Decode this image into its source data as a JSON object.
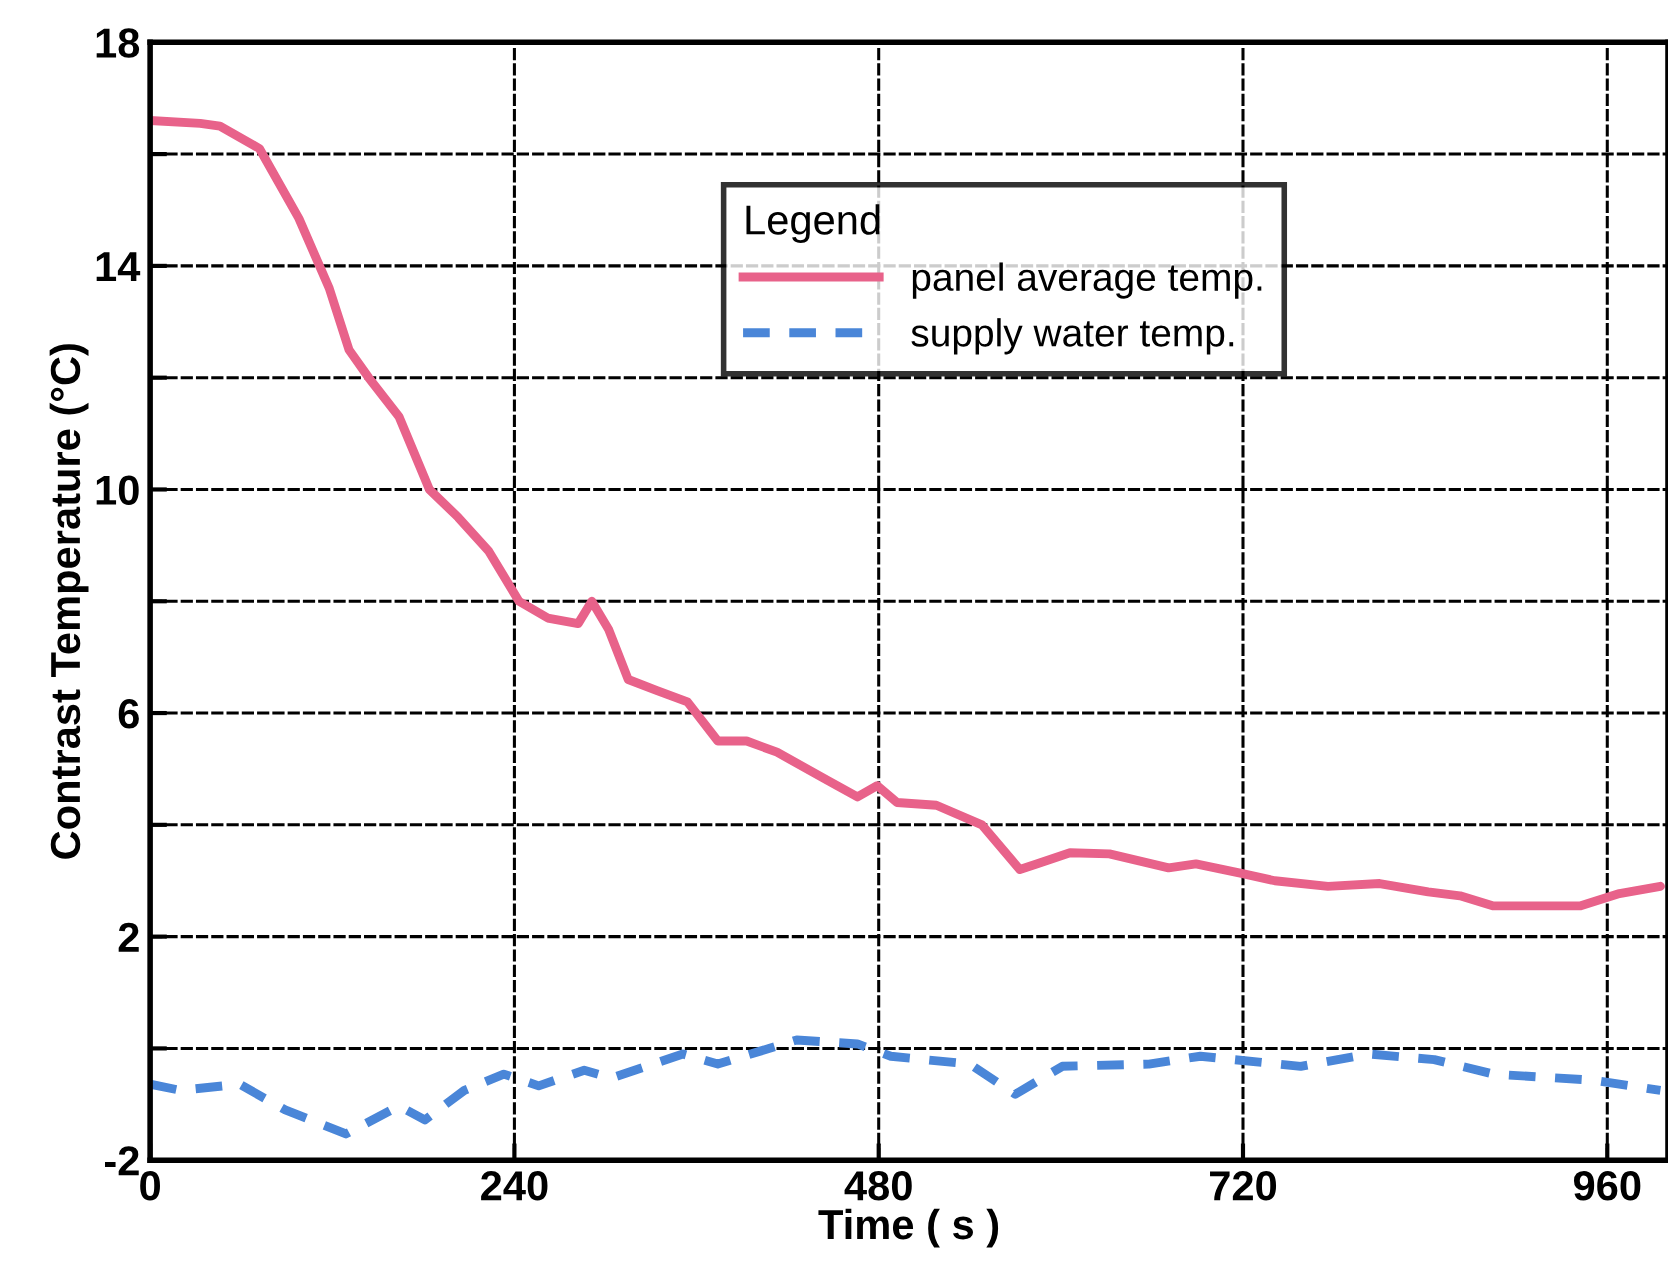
{
  "chart_data": {
    "type": "line",
    "xlabel": "Time ( s )",
    "ylabel": "Contrast Temperature (°C)",
    "legend_title": "Legend",
    "xlim": [
      0,
      1000
    ],
    "xticks": [
      0,
      240,
      480,
      720,
      960
    ],
    "ylim": [
      -2,
      18
    ],
    "yticks": [
      -2,
      {
        "value": 0,
        "label": null
      },
      2,
      {
        "value": 4,
        "label": null
      },
      6,
      {
        "value": 8,
        "label": null
      },
      10,
      {
        "value": 12,
        "label": null
      },
      14,
      {
        "value": 16,
        "label": null
      },
      18
    ],
    "grid": true,
    "legend": "top right",
    "series": [
      {
        "name": "panel average temp.",
        "color": "#e8628a",
        "line_style": "solid",
        "x": [
          0,
          33,
          46,
          72,
          98,
          118,
          131,
          144,
          164,
          184,
          203,
          223,
          243,
          262,
          282,
          291,
          302,
          315,
          334,
          354,
          374,
          393,
          413,
          446,
          466,
          479,
          492,
          518,
          548,
          573,
          584,
          606,
          632,
          671,
          689,
          719,
          741,
          776,
          810,
          842,
          863,
          885,
          942,
          968,
          995
        ],
        "values": [
          16.6,
          16.55,
          16.5,
          16.1,
          14.85,
          13.6,
          12.5,
          12,
          11.3,
          10,
          9.5,
          8.9,
          8.0,
          7.7,
          7.6,
          8.0,
          7.5,
          6.6,
          6.4,
          6.2,
          5.5,
          5.5,
          5.3,
          4.8,
          4.5,
          4.7,
          4.4,
          4.35,
          4.0,
          3.2,
          3.3,
          3.5,
          3.48,
          3.23,
          3.3,
          3.13,
          3.0,
          2.9,
          2.95,
          2.8,
          2.73,
          2.55,
          2.55,
          2.77,
          2.9
        ]
      },
      {
        "name": "supply water temp.",
        "color": "#4a86d8",
        "line_style": "dashed",
        "x": [
          0,
          20,
          59,
          89,
          129,
          164,
          181,
          207,
          233,
          256,
          286,
          304,
          351,
          374,
          426,
          466,
          488,
          540,
          570,
          601,
          658,
          692,
          758,
          803,
          846,
          885,
          951,
          995
        ],
        "values": [
          -0.64,
          -0.75,
          -0.64,
          -1.1,
          -1.53,
          -1.03,
          -1.28,
          -0.75,
          -0.46,
          -0.67,
          -0.39,
          -0.53,
          -0.1,
          -0.28,
          0.15,
          0.08,
          -0.14,
          -0.28,
          -0.82,
          -0.32,
          -0.28,
          -0.14,
          -0.32,
          -0.1,
          -0.2,
          -0.46,
          -0.57,
          -0.75
        ]
      }
    ]
  }
}
